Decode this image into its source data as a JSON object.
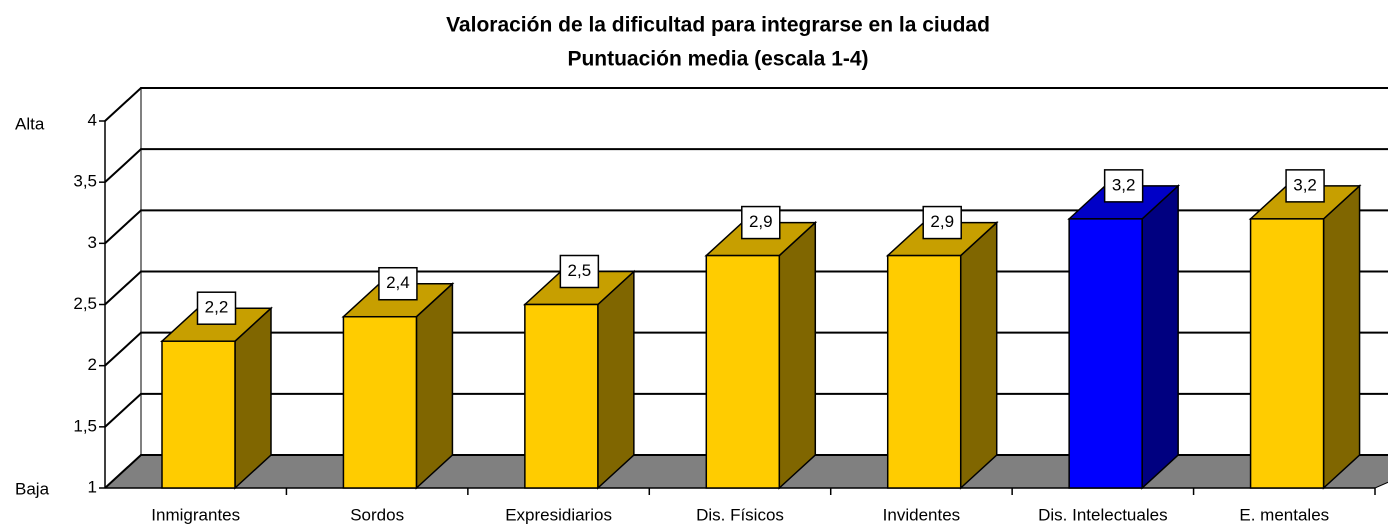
{
  "chart_data": {
    "type": "bar3d",
    "title": "Valoración de la dificultad para integrarse en la ciudad",
    "subtitle": "Puntuación media (escala 1-4)",
    "categories": [
      "Inmigrantes",
      "Sordos",
      "Expresidiarios",
      "Dis. Físicos",
      "Invidentes",
      "Dis. Intelectuales",
      "E. mentales"
    ],
    "values": [
      2.2,
      2.4,
      2.5,
      2.9,
      2.9,
      3.2,
      3.2
    ],
    "value_labels": [
      "2,2",
      "2,4",
      "2,5",
      "2,9",
      "2,9",
      "3,2",
      "3,2"
    ],
    "colors": [
      "#ffcc00",
      "#ffcc00",
      "#ffcc00",
      "#ffcc00",
      "#ffcc00",
      "#0000ff",
      "#ffcc00"
    ],
    "ylim": [
      1,
      4
    ],
    "yticks": [
      1,
      {
        "value": 1.5,
        "label": "1,5"
      },
      2,
      {
        "value": 2.5,
        "label": "2,5"
      },
      3,
      {
        "value": 3.5,
        "label": "3,5"
      },
      4
    ],
    "annotations": [
      "Alta",
      "Baja"
    ],
    "grid": true
  }
}
